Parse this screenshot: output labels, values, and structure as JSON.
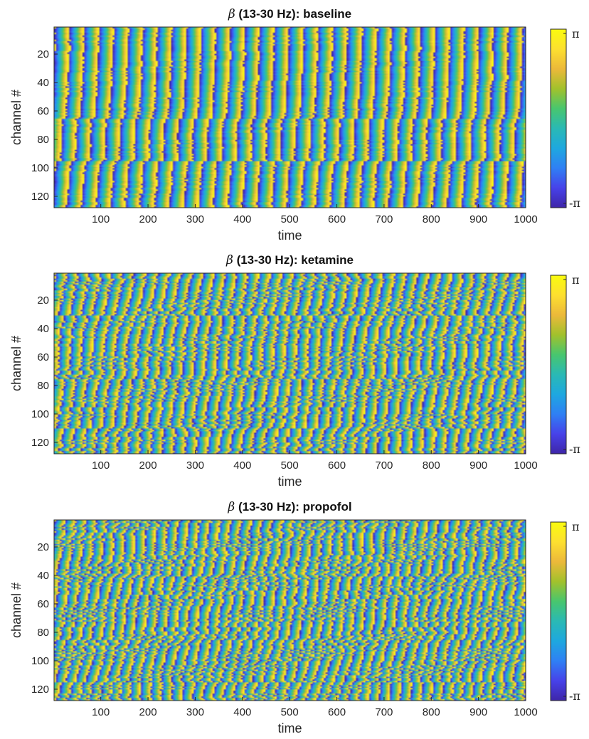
{
  "chart_data": [
    {
      "type": "heatmap",
      "title_symbol": "β",
      "title_text": " (13-30 Hz): baseline",
      "xlabel": "time",
      "ylabel": "channel #",
      "xlim": [
        1,
        1000
      ],
      "ylim": [
        1,
        128
      ],
      "xticks": [
        100,
        200,
        300,
        400,
        500,
        600,
        700,
        800,
        900,
        1000
      ],
      "yticks": [
        20,
        40,
        60,
        80,
        100,
        120
      ],
      "colorbar": {
        "min_label": "-π",
        "max_label": "π",
        "range": [
          -3.1416,
          3.1416
        ],
        "colormap": "parula"
      },
      "pattern": {
        "wave_period": 31,
        "spatial_gradient": 0.03,
        "noise": 0.35,
        "dislocations": [
          [
            95,
            2.2
          ],
          [
            65,
            1.5
          ],
          [
            270,
            0.8
          ]
        ]
      }
    },
    {
      "type": "heatmap",
      "title_symbol": "β",
      "title_text": " (13-30 Hz): ketamine",
      "xlabel": "time",
      "ylabel": "channel #",
      "xlim": [
        1,
        1000
      ],
      "ylim": [
        1,
        128
      ],
      "xticks": [
        100,
        200,
        300,
        400,
        500,
        600,
        700,
        800,
        900,
        1000
      ],
      "yticks": [
        20,
        40,
        60,
        80,
        100,
        120
      ],
      "colorbar": {
        "min_label": "-π",
        "max_label": "π",
        "range": [
          -3.1416,
          3.1416
        ],
        "colormap": "parula"
      },
      "pattern": {
        "wave_period": 24,
        "spatial_gradient": 0.12,
        "noise": 0.9,
        "dislocations": [
          [
            30,
            3.0
          ],
          [
            75,
            2.0
          ],
          [
            110,
            2.6
          ]
        ]
      }
    },
    {
      "type": "heatmap",
      "title_symbol": "β",
      "title_text": " (13-30 Hz): propofol",
      "xlabel": "time",
      "ylabel": "channel #",
      "xlim": [
        1,
        1000
      ],
      "ylim": [
        1,
        128
      ],
      "xticks": [
        100,
        200,
        300,
        400,
        500,
        600,
        700,
        800,
        900,
        1000
      ],
      "yticks": [
        20,
        40,
        60,
        80,
        100,
        120
      ],
      "colorbar": {
        "min_label": "-π",
        "max_label": "π",
        "range": [
          -3.1416,
          3.1416
        ],
        "colormap": "parula"
      },
      "pattern": {
        "wave_period": 22,
        "spatial_gradient": 0.15,
        "noise": 1.1,
        "dislocations": [
          [
            40,
            2.8
          ],
          [
            85,
            2.4
          ],
          [
            115,
            3.0
          ]
        ]
      }
    }
  ],
  "colormap_stops": [
    "#3e26a8",
    "#4742e9",
    "#2f80f4",
    "#1ea8df",
    "#2ab9b4",
    "#48c66e",
    "#a2c12c",
    "#ecb93a",
    "#fde030",
    "#f9fb0e"
  ]
}
